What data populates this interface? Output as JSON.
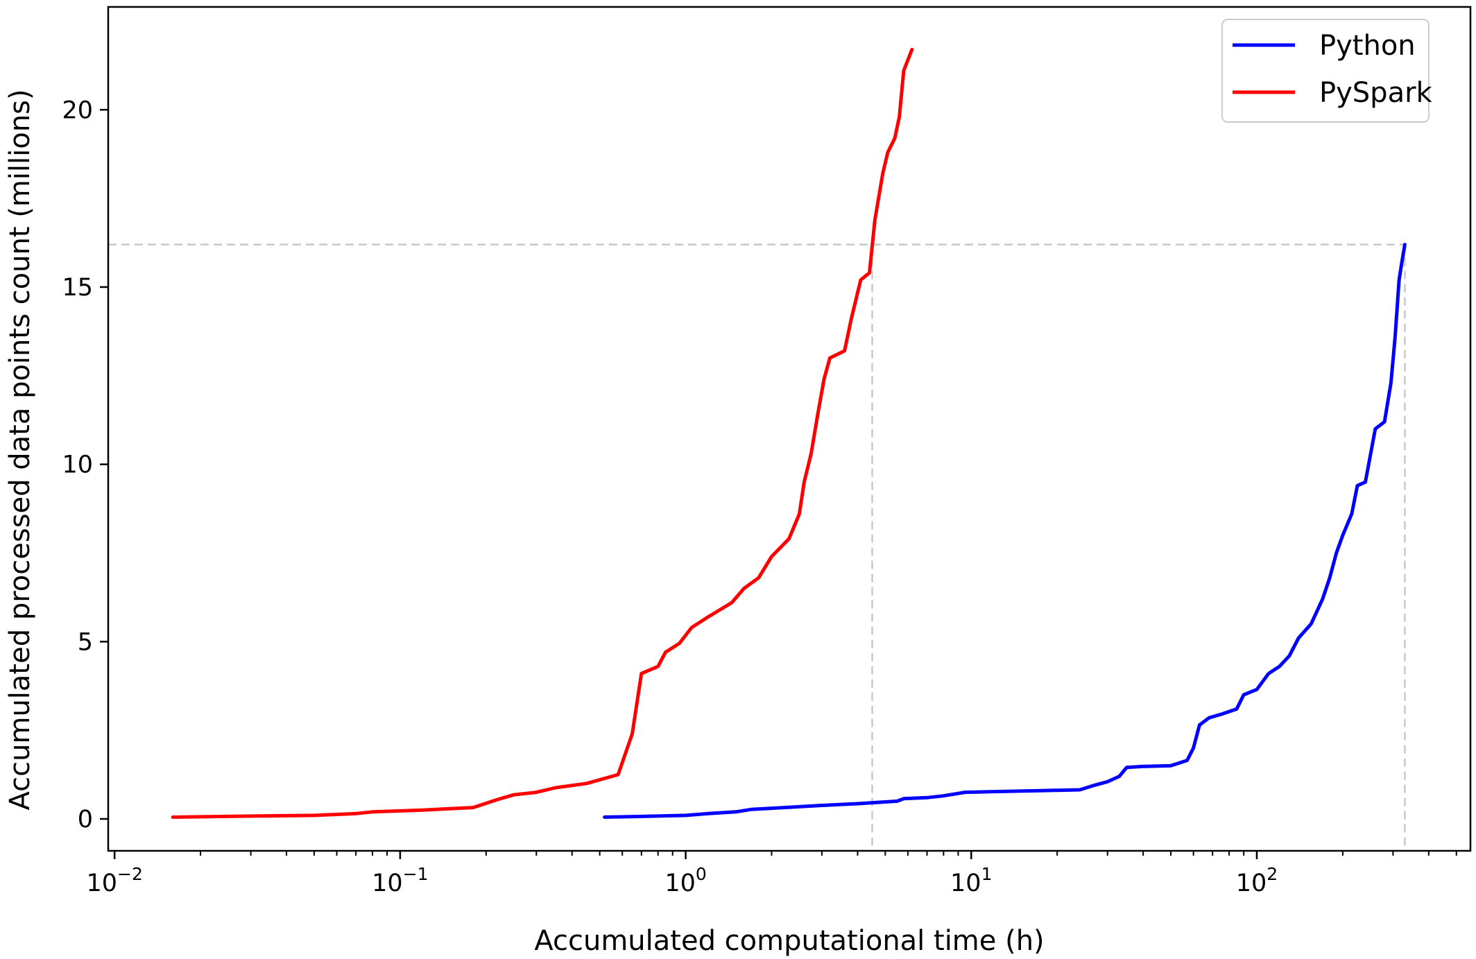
{
  "chart_data": {
    "type": "line",
    "title": "",
    "xlabel": "Accumulated computational time (h)",
    "ylabel": "Accumulated processed data points count (millions)",
    "xscale": "log",
    "xlim": [
      0.0095,
      560
    ],
    "ylim": [
      -0.9,
      22.9
    ],
    "x_ticks": [
      {
        "value": 0.01,
        "base": "10",
        "exp": "−2"
      },
      {
        "value": 0.1,
        "base": "10",
        "exp": "−1"
      },
      {
        "value": 1,
        "base": "10",
        "exp": "0"
      },
      {
        "value": 10,
        "base": "10",
        "exp": "1"
      },
      {
        "value": 100,
        "base": "10",
        "exp": "2"
      }
    ],
    "y_ticks": [
      0,
      5,
      10,
      15,
      20
    ],
    "grid": false,
    "legend_position": "top-right",
    "series": [
      {
        "name": "Python",
        "color": "#0000ff",
        "points": [
          [
            0.52,
            0.05
          ],
          [
            0.7,
            0.07
          ],
          [
            1.0,
            0.1
          ],
          [
            1.2,
            0.15
          ],
          [
            1.5,
            0.2
          ],
          [
            1.7,
            0.27
          ],
          [
            2.0,
            0.3
          ],
          [
            3.0,
            0.38
          ],
          [
            4.0,
            0.43
          ],
          [
            5.5,
            0.5
          ],
          [
            5.8,
            0.57
          ],
          [
            7.0,
            0.6
          ],
          [
            8.0,
            0.65
          ],
          [
            9.5,
            0.75
          ],
          [
            12.0,
            0.77
          ],
          [
            18.0,
            0.8
          ],
          [
            24.0,
            0.82
          ],
          [
            27.0,
            0.95
          ],
          [
            30.0,
            1.05
          ],
          [
            33.0,
            1.2
          ],
          [
            35.0,
            1.45
          ],
          [
            40.0,
            1.48
          ],
          [
            50.0,
            1.5
          ],
          [
            57.0,
            1.65
          ],
          [
            60.0,
            2.0
          ],
          [
            63.0,
            2.65
          ],
          [
            68.0,
            2.85
          ],
          [
            75.0,
            2.95
          ],
          [
            85.0,
            3.1
          ],
          [
            90.0,
            3.5
          ],
          [
            100.0,
            3.65
          ],
          [
            110.0,
            4.1
          ],
          [
            120.0,
            4.3
          ],
          [
            130.0,
            4.6
          ],
          [
            140.0,
            5.1
          ],
          [
            155.0,
            5.5
          ],
          [
            170.0,
            6.2
          ],
          [
            180.0,
            6.8
          ],
          [
            190.0,
            7.5
          ],
          [
            200.0,
            8.0
          ],
          [
            215.0,
            8.6
          ],
          [
            225.0,
            9.4
          ],
          [
            240.0,
            9.5
          ],
          [
            260.0,
            11.0
          ],
          [
            280.0,
            11.2
          ],
          [
            295.0,
            12.3
          ],
          [
            305.0,
            13.6
          ],
          [
            315.0,
            15.2
          ],
          [
            322.0,
            15.7
          ],
          [
            330.0,
            16.2
          ]
        ]
      },
      {
        "name": "PySpark",
        "color": "#ff0000",
        "points": [
          [
            0.016,
            0.05
          ],
          [
            0.03,
            0.08
          ],
          [
            0.05,
            0.1
          ],
          [
            0.07,
            0.15
          ],
          [
            0.08,
            0.2
          ],
          [
            0.12,
            0.25
          ],
          [
            0.18,
            0.32
          ],
          [
            0.22,
            0.55
          ],
          [
            0.25,
            0.68
          ],
          [
            0.3,
            0.75
          ],
          [
            0.35,
            0.88
          ],
          [
            0.45,
            1.0
          ],
          [
            0.58,
            1.25
          ],
          [
            0.65,
            2.4
          ],
          [
            0.7,
            4.1
          ],
          [
            0.8,
            4.3
          ],
          [
            0.85,
            4.7
          ],
          [
            0.95,
            4.95
          ],
          [
            1.05,
            5.4
          ],
          [
            1.2,
            5.7
          ],
          [
            1.45,
            6.1
          ],
          [
            1.6,
            6.5
          ],
          [
            1.8,
            6.8
          ],
          [
            2.0,
            7.4
          ],
          [
            2.3,
            7.9
          ],
          [
            2.5,
            8.6
          ],
          [
            2.6,
            9.5
          ],
          [
            2.75,
            10.3
          ],
          [
            2.9,
            11.4
          ],
          [
            3.05,
            12.4
          ],
          [
            3.2,
            13.0
          ],
          [
            3.6,
            13.2
          ],
          [
            3.8,
            14.1
          ],
          [
            4.1,
            15.2
          ],
          [
            4.4,
            15.4
          ],
          [
            4.6,
            16.9
          ],
          [
            4.9,
            18.2
          ],
          [
            5.1,
            18.8
          ],
          [
            5.4,
            19.2
          ],
          [
            5.6,
            19.8
          ],
          [
            5.8,
            21.1
          ],
          [
            6.2,
            21.7
          ]
        ]
      }
    ],
    "reference_lines": [
      {
        "orientation": "horizontal",
        "y": 16.2,
        "color": "#c8c8c8"
      },
      {
        "orientation": "vertical",
        "x": 4.5,
        "color": "#c8c8c8"
      },
      {
        "orientation": "vertical",
        "x": 330,
        "color": "#c8c8c8"
      }
    ]
  }
}
